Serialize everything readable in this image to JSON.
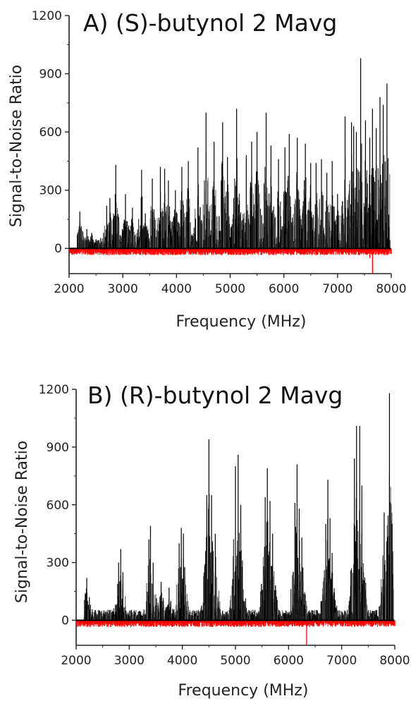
{
  "colors": {
    "signal": "#000000",
    "noise": "#ff0000",
    "axis": "#222222"
  },
  "chart_data": [
    {
      "type": "line",
      "title": "A) (S)-butynol  2 Mavg",
      "xlabel": "Frequency (MHz)",
      "ylabel": "Signal-to-Noise Ratio",
      "xlim": [
        2000,
        8000
      ],
      "ylim": [
        -130,
        1200
      ],
      "xticks": [
        "2000",
        "3000",
        "4000",
        "5000",
        "6000",
        "7000",
        "8000"
      ],
      "yticks": [
        "0",
        "300",
        "600",
        "900",
        "1200"
      ],
      "grid": false,
      "series": [
        {
          "color": "#000000",
          "kind": "signal",
          "x": [
            2200,
            2330,
            2420,
            2700,
            2760,
            2870,
            3050,
            3180,
            3350,
            3420,
            3550,
            3700,
            3780,
            3850,
            3980,
            4100,
            4220,
            4400,
            4550,
            4700,
            4860,
            4950,
            5120,
            5300,
            5400,
            5500,
            5670,
            5760,
            5900,
            6020,
            6100,
            6250,
            6400,
            6500,
            6600,
            6700,
            6800,
            6900,
            7000,
            7140,
            7260,
            7300,
            7350,
            7430,
            7520,
            7600,
            7650,
            7720,
            7790,
            7850,
            7920
          ],
          "y": [
            190,
            100,
            80,
            220,
            260,
            430,
            280,
            210,
            405,
            180,
            360,
            420,
            410,
            350,
            300,
            420,
            450,
            520,
            700,
            550,
            650,
            470,
            720,
            480,
            550,
            600,
            700,
            530,
            460,
            520,
            590,
            570,
            540,
            440,
            440,
            460,
            390,
            450,
            280,
            680,
            650,
            630,
            600,
            980,
            660,
            570,
            720,
            620,
            780,
            740,
            850
          ]
        },
        {
          "color": "#ff0000",
          "kind": "noise",
          "x": [
            2000,
            2800,
            3500,
            4300,
            5000,
            5700,
            6400,
            7000,
            7600,
            7650,
            8000
          ],
          "y": [
            -10,
            -20,
            -15,
            -20,
            -25,
            -20,
            -25,
            -20,
            -50,
            -130,
            -30
          ]
        }
      ]
    },
    {
      "type": "line",
      "title": "B) (R)-butynol  2 Mavg",
      "xlabel": "Frequency (MHz)",
      "ylabel": "Signal-to-Noise Ratio",
      "xlim": [
        2000,
        8000
      ],
      "ylim": [
        -130,
        1200
      ],
      "xticks": [
        "2000",
        "3000",
        "4000",
        "5000",
        "6000",
        "7000",
        "8000"
      ],
      "yticks": [
        "0",
        "300",
        "600",
        "900",
        "1200"
      ],
      "grid": false,
      "series": [
        {
          "color": "#000000",
          "kind": "signal",
          "x": [
            2200,
            2250,
            2800,
            2840,
            2880,
            3370,
            3400,
            3450,
            3600,
            3750,
            3940,
            3980,
            4020,
            4460,
            4500,
            4550,
            4620,
            5000,
            5050,
            5100,
            5560,
            5600,
            5650,
            5700,
            6120,
            6160,
            6200,
            6250,
            6700,
            6740,
            6780,
            6820,
            7240,
            7280,
            7340,
            7380,
            7800,
            7850,
            7900,
            7950
          ],
          "y": [
            220,
            120,
            300,
            370,
            250,
            420,
            490,
            300,
            200,
            170,
            400,
            480,
            450,
            650,
            940,
            650,
            450,
            800,
            860,
            600,
            640,
            790,
            620,
            450,
            610,
            810,
            580,
            430,
            500,
            730,
            530,
            350,
            840,
            1010,
            1010,
            700,
            560,
            410,
            1180,
            500
          ]
        },
        {
          "color": "#ff0000",
          "kind": "noise",
          "x": [
            2000,
            2800,
            3500,
            4300,
            5000,
            5700,
            6300,
            6340,
            6400,
            7000,
            7600,
            8000
          ],
          "y": [
            -10,
            -20,
            -15,
            -20,
            -25,
            -20,
            -25,
            -130,
            -30,
            -20,
            -25,
            -30
          ]
        }
      ]
    }
  ]
}
